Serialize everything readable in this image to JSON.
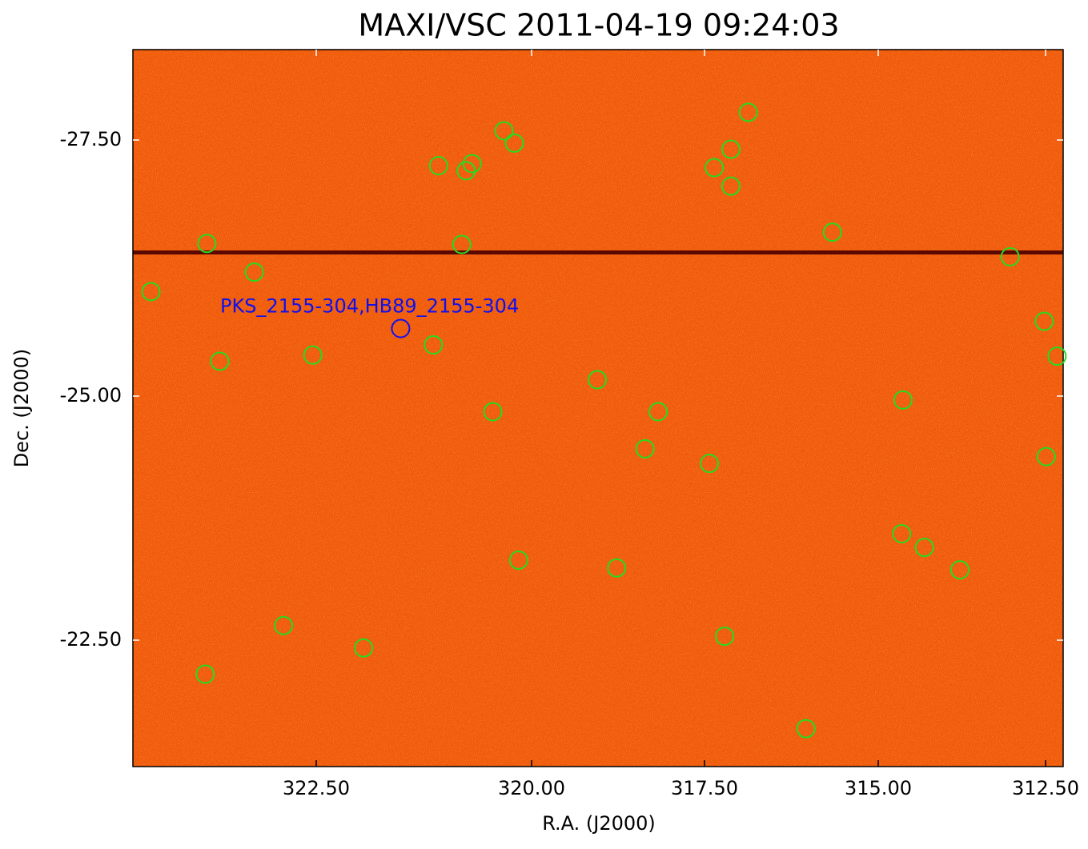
{
  "chart_data": {
    "type": "scatter",
    "title": "MAXI/VSC 2011-04-19 09:24:03",
    "xlabel": "R.A. (J2000)",
    "ylabel": "Dec. (J2000)",
    "xlim": [
      324.63,
      312.24
    ],
    "ylim": [
      -28.38,
      -21.2
    ],
    "xticks": [
      {
        "value": 322.5,
        "label": "322.50"
      },
      {
        "value": 320,
        "label": "320.00"
      },
      {
        "value": 317.5,
        "label": "317.50"
      },
      {
        "value": 315,
        "label": "315.00"
      },
      {
        "value": 312.5,
        "label": "312.50"
      }
    ],
    "yticks": [
      {
        "value": -27.5,
        "label": "-27.50"
      },
      {
        "value": -25,
        "label": "-25.00"
      },
      {
        "value": -22.5,
        "label": "-22.50"
      }
    ],
    "sources": {
      "color": "#22dd22",
      "x": [
        316.87,
        320.32,
        320.2,
        317.12,
        321.08,
        320.69,
        320.76,
        317.36,
        317.12,
        315.66,
        323.77,
        320.81,
        313.03,
        323.22,
        324.42,
        312.52,
        321.14,
        322.54,
        323.62,
        312.33,
        319.05,
        314.63,
        320.45,
        318.17,
        318.36,
        317.43,
        312.49,
        314.65,
        314.31,
        320.15,
        318.77,
        313.78,
        322.88,
        321.95,
        317.21,
        323.79,
        316.04
      ],
      "y": [
        -27.77,
        -27.59,
        -27.47,
        -27.41,
        -27.25,
        -27.27,
        -27.2,
        -27.23,
        -27.05,
        -26.6,
        -26.49,
        -26.48,
        -26.36,
        -26.21,
        -26.02,
        -25.73,
        -25.5,
        -25.4,
        -25.34,
        -25.39,
        -25.16,
        -24.96,
        -24.84,
        -24.84,
        -24.46,
        -24.31,
        -24.38,
        -23.59,
        -23.45,
        -23.32,
        -23.24,
        -23.22,
        -22.65,
        -22.42,
        -22.54,
        -22.15,
        -21.59
      ]
    },
    "annotations": [
      {
        "text": "PKS_2155-304,HB89_2155-304",
        "x": 321.52,
        "y": -25.66,
        "color": "#1010ee"
      }
    ]
  }
}
